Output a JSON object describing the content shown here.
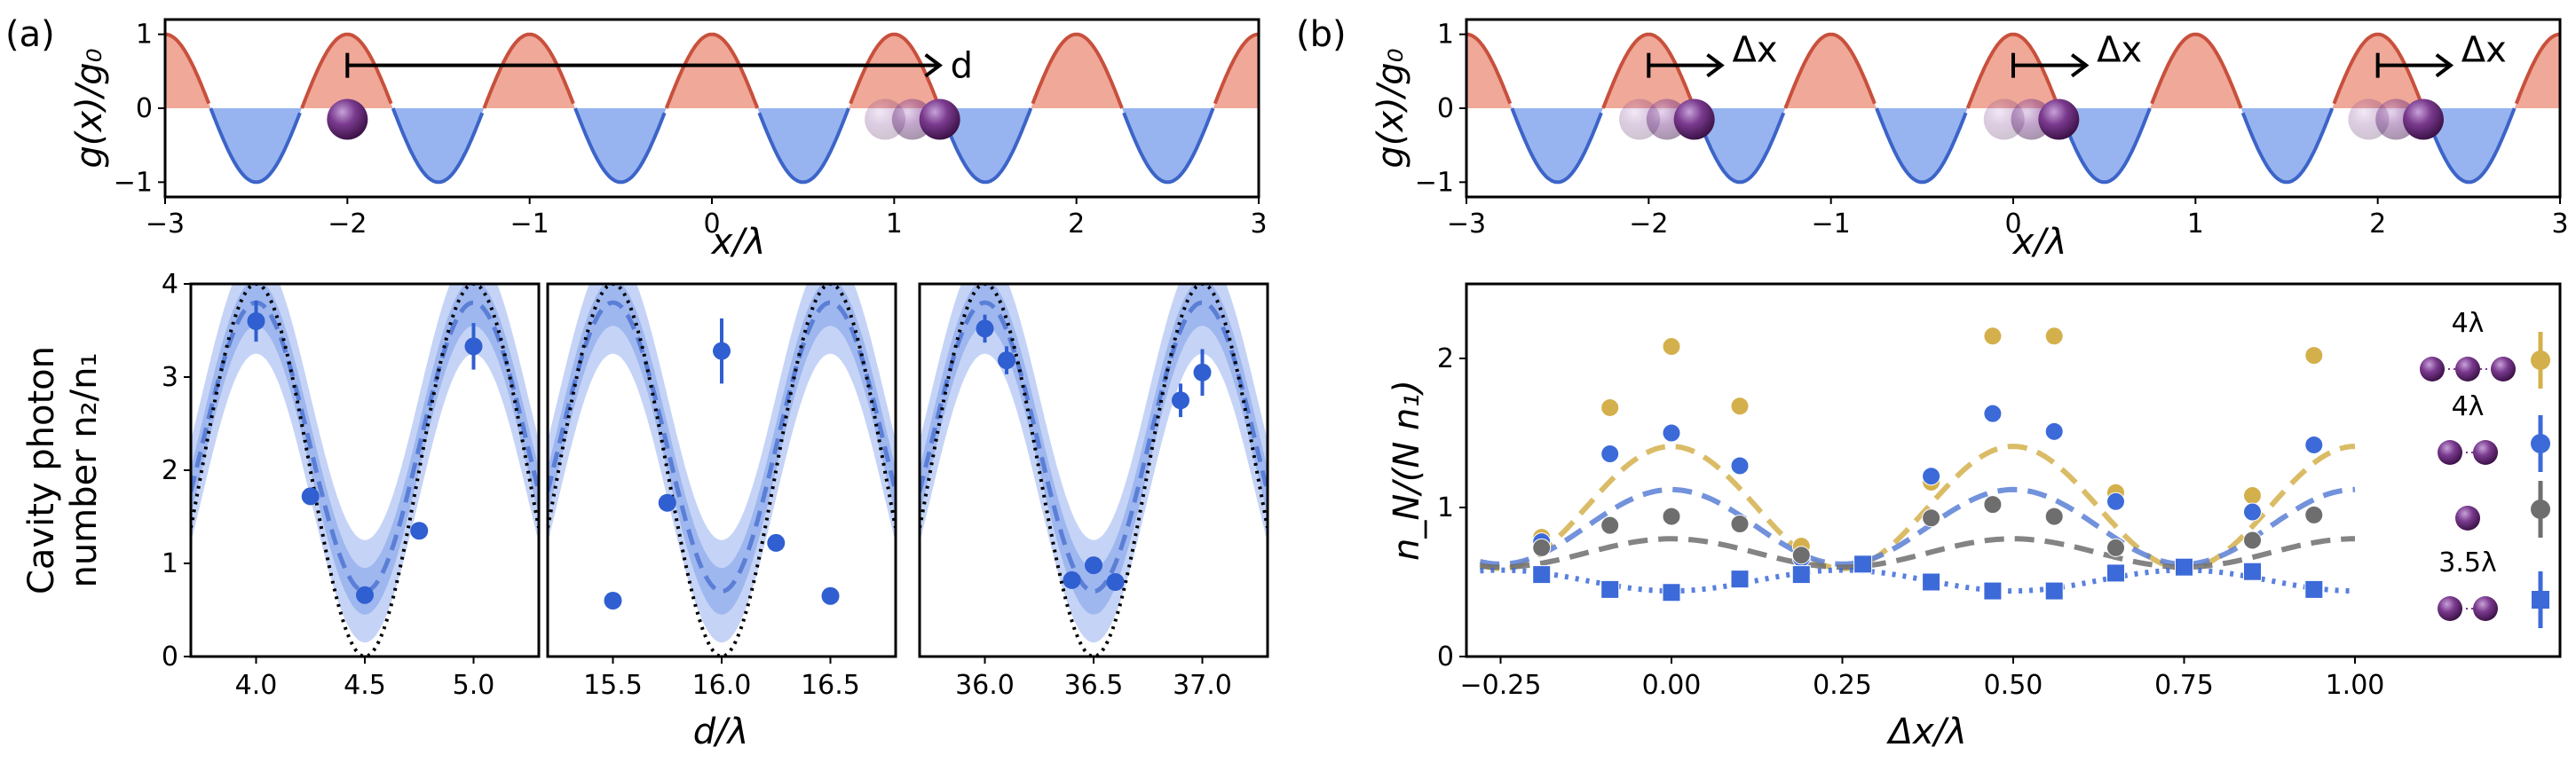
{
  "panel_labels": {
    "a": "(a)",
    "b": "(b)"
  },
  "chart_data": [
    {
      "id": "a-top",
      "type": "line",
      "description_free": true,
      "function": "cos(2*pi*x)",
      "xlim": [
        -3,
        3
      ],
      "ylim": [
        -1.2,
        1.2
      ],
      "xticks": [
        -3,
        -2,
        -1,
        0,
        1,
        2,
        3
      ],
      "yticks": [
        1,
        0,
        -1
      ],
      "xlabel": "x/λ",
      "ylabel": "g(x)/g₀",
      "fill_pos_color": "#f0a898",
      "fill_neg_color": "#98b4f0",
      "line_pos_color": "#c8503c",
      "line_neg_color": "#3c64c8",
      "atoms": [
        {
          "x": -2.0,
          "opacity": 1
        },
        {
          "x": 0.95,
          "opacity": 0.25
        },
        {
          "x": 1.1,
          "opacity": 0.45
        },
        {
          "x": 1.25,
          "opacity": 1
        }
      ],
      "arrow": {
        "from": -2.0,
        "to": 1.25,
        "label": "d"
      }
    },
    {
      "id": "b-top",
      "type": "line",
      "function": "cos(2*pi*x)",
      "xlim": [
        -3,
        3
      ],
      "ylim": [
        -1.2,
        1.2
      ],
      "xticks": [
        -3,
        -2,
        -1,
        0,
        1,
        2,
        3
      ],
      "yticks": [
        1,
        0,
        -1
      ],
      "xlabel": "x/λ",
      "ylabel": "g(x)/g₀",
      "arrows": [
        {
          "from": -2.0,
          "to": -1.6,
          "label": "Δx"
        },
        {
          "from": 0.0,
          "to": 0.4,
          "label": "Δx"
        },
        {
          "from": 2.0,
          "to": 2.4,
          "label": "Δx"
        }
      ],
      "atom_groups": [
        -2.0,
        0.0,
        2.0
      ]
    },
    {
      "id": "a-bottom",
      "type": "scatter",
      "ylabel_lines": [
        "Cavity photon",
        "number n₂/n₁"
      ],
      "xlabel": "d/λ",
      "ylim": [
        0,
        4
      ],
      "yticks": [
        0,
        1,
        2,
        3,
        4
      ],
      "subplots": [
        {
          "xlim": [
            3.7,
            5.3
          ],
          "xticks": [
            4.0,
            4.5,
            5.0
          ],
          "points": [
            [
              4.0,
              3.6,
              0.22
            ],
            [
              4.25,
              1.72,
              0.05
            ],
            [
              4.5,
              0.66,
              0.06
            ],
            [
              4.75,
              1.35,
              0.06
            ],
            [
              5.0,
              3.33,
              0.25
            ]
          ]
        },
        {
          "xlim": [
            15.2,
            16.8
          ],
          "xticks": [
            15.5,
            16.0,
            16.5
          ],
          "points": [
            [
              15.5,
              0.6,
              0.05
            ],
            [
              15.75,
              1.65,
              0.06
            ],
            [
              16.0,
              3.28,
              0.35
            ],
            [
              16.25,
              1.22,
              0.05
            ],
            [
              16.5,
              0.65,
              0.05
            ]
          ]
        },
        {
          "xlim": [
            35.7,
            37.3
          ],
          "xticks": [
            36.0,
            36.5,
            37.0
          ],
          "points": [
            [
              36.0,
              3.52,
              0.15
            ],
            [
              36.1,
              3.18,
              0.15
            ],
            [
              36.4,
              0.82,
              0.05
            ],
            [
              36.5,
              0.98,
              0.05
            ],
            [
              36.6,
              0.8,
              0.05
            ],
            [
              36.9,
              2.75,
              0.18
            ],
            [
              37.0,
              3.05,
              0.25
            ]
          ]
        }
      ]
    },
    {
      "id": "b-bottom",
      "type": "scatter",
      "xlabel": "Δx/λ",
      "ylabel": "n_N/(N n₁)",
      "xlim": [
        -0.3,
        1.3
      ],
      "ylim": [
        0,
        2.5
      ],
      "xticks": [
        -0.25,
        0.0,
        0.25,
        0.5,
        0.75,
        1.0
      ],
      "xtick_labels": [
        "−0.25",
        "0.00",
        "0.25",
        "0.50",
        "0.75",
        "1.00"
      ],
      "yticks": [
        0,
        1,
        2
      ],
      "series": [
        {
          "label": "4λ",
          "atoms": 3,
          "color": "#d4b04c",
          "marker": "circle",
          "points": [
            [
              -0.19,
              0.8
            ],
            [
              -0.09,
              1.67
            ],
            [
              0.0,
              2.08
            ],
            [
              0.1,
              1.68
            ],
            [
              0.19,
              0.74
            ],
            [
              0.38,
              1.17
            ],
            [
              0.47,
              2.15
            ],
            [
              0.56,
              2.15
            ],
            [
              0.65,
              1.1
            ],
            [
              0.85,
              1.08
            ],
            [
              0.94,
              2.02
            ]
          ]
        },
        {
          "label": "4λ",
          "atoms": 2,
          "color": "#3c6ad8",
          "marker": "circle",
          "points": [
            [
              -0.19,
              0.77
            ],
            [
              -0.09,
              1.36
            ],
            [
              0.0,
              1.5
            ],
            [
              0.1,
              1.28
            ],
            [
              0.19,
              0.66
            ],
            [
              0.38,
              1.21
            ],
            [
              0.47,
              1.63
            ],
            [
              0.56,
              1.51
            ],
            [
              0.65,
              1.04
            ],
            [
              0.85,
              0.97
            ],
            [
              0.94,
              1.42
            ]
          ]
        },
        {
          "label": "",
          "atoms": 1,
          "color": "#6e6e6e",
          "marker": "circle",
          "points": [
            [
              -0.19,
              0.73
            ],
            [
              -0.09,
              0.88
            ],
            [
              0.0,
              0.94
            ],
            [
              0.1,
              0.89
            ],
            [
              0.19,
              0.68
            ],
            [
              0.38,
              0.93
            ],
            [
              0.47,
              1.02
            ],
            [
              0.56,
              0.94
            ],
            [
              0.65,
              0.73
            ],
            [
              0.85,
              0.78
            ],
            [
              0.94,
              0.95
            ]
          ]
        },
        {
          "label": "3.5λ",
          "atoms": 2,
          "color": "#3c6ad8",
          "marker": "square",
          "points": [
            [
              -0.19,
              0.55
            ],
            [
              -0.09,
              0.45
            ],
            [
              0.0,
              0.43
            ],
            [
              0.1,
              0.52
            ],
            [
              0.19,
              0.55
            ],
            [
              0.28,
              0.62
            ],
            [
              0.38,
              0.5
            ],
            [
              0.47,
              0.44
            ],
            [
              0.56,
              0.44
            ],
            [
              0.65,
              0.56
            ],
            [
              0.75,
              0.6
            ],
            [
              0.85,
              0.57
            ],
            [
              0.94,
              0.45
            ]
          ]
        }
      ]
    }
  ]
}
